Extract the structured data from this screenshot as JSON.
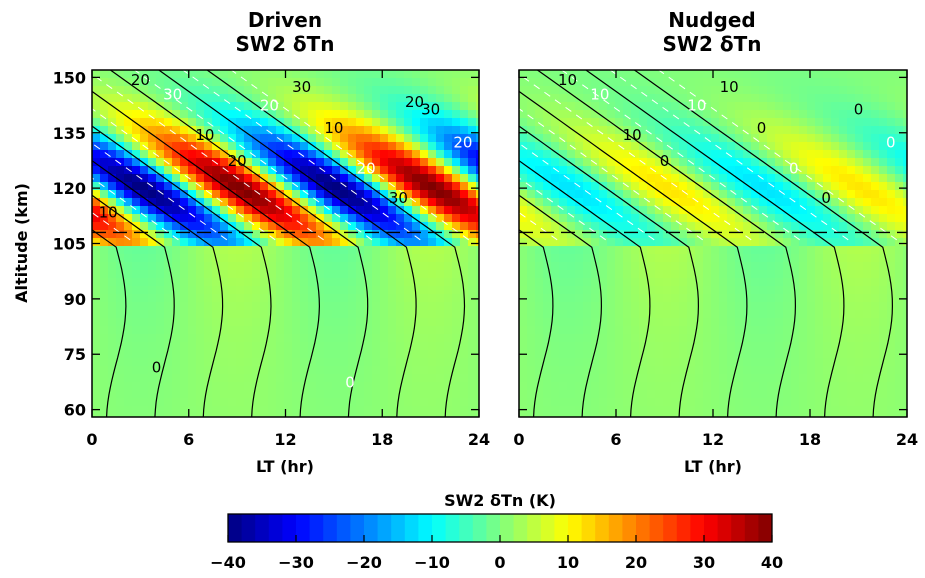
{
  "chart_data": {
    "type": "heatmap",
    "panels": [
      {
        "title_line1": "Driven",
        "title_line2": "SW2 δTn",
        "amplitude": 40,
        "xlabel": "LT (hr)",
        "ylabel": "Altitude (km)",
        "dashed_line_altitude": 108,
        "contour_labels": [
          "20",
          "30",
          "10",
          "20",
          "20",
          "30",
          "10",
          "20",
          "30",
          "30",
          "20",
          "10",
          "0",
          "0",
          "20"
        ]
      },
      {
        "title_line1": "Nudged",
        "title_line2": "SW2 δTn",
        "amplitude": 12,
        "xlabel": "LT (hr)",
        "ylabel": "",
        "dashed_line_altitude": 108,
        "contour_labels": [
          "10",
          "10",
          "10",
          "0",
          "10",
          "10",
          "0",
          "0",
          "0",
          "0",
          "0"
        ]
      }
    ],
    "x_ticks": [
      "0",
      "6",
      "12",
      "18",
      "24"
    ],
    "y_ticks": [
      "60",
      "75",
      "90",
      "105",
      "120",
      "135",
      "150"
    ],
    "xlim": [
      0,
      24
    ],
    "ylim": [
      58,
      152
    ],
    "colorbar": {
      "label": "SW2 δTn (K)",
      "ticks": [
        "−40",
        "−30",
        "−20",
        "−10",
        "0",
        "10",
        "20",
        "30",
        "40"
      ],
      "range": [
        -40,
        40
      ]
    },
    "colormap": [
      "#00007f",
      "#0000ff",
      "#007fff",
      "#00ffff",
      "#7fff7f",
      "#ffff00",
      "#ff7f00",
      "#ff0000",
      "#7f0000"
    ]
  }
}
